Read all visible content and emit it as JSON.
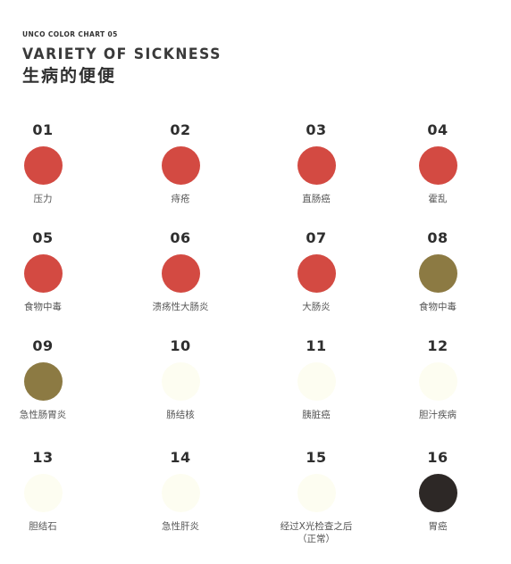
{
  "header": {
    "eyebrow": "UNCO COLOR CHART 05",
    "title": "VARIETY OF SICKNESS",
    "subtitle": "生病的便便"
  },
  "items": [
    {
      "num": "01",
      "label": "压力",
      "color": "#d34a42"
    },
    {
      "num": "02",
      "label": "痔疮",
      "color": "#d34a42"
    },
    {
      "num": "03",
      "label": "直肠癌",
      "color": "#d34a42"
    },
    {
      "num": "04",
      "label": "霍乱",
      "color": "#d34a42"
    },
    {
      "num": "05",
      "label": "食物中毒",
      "color": "#d34a42"
    },
    {
      "num": "06",
      "label": "溃疡性大肠炎",
      "color": "#d34a42"
    },
    {
      "num": "07",
      "label": "大肠炎",
      "color": "#d34a42"
    },
    {
      "num": "08",
      "label": "食物中毒",
      "color": "#8c7a43"
    },
    {
      "num": "09",
      "label": "急性肠胃炎",
      "color": "#8c7a43"
    },
    {
      "num": "10",
      "label": "肠结核",
      "color": "#fdfdf1"
    },
    {
      "num": "11",
      "label": "胰脏癌",
      "color": "#fdfdf1"
    },
    {
      "num": "12",
      "label": "胆汁疾病",
      "color": "#fdfdf1"
    },
    {
      "num": "13",
      "label": "胆结石",
      "color": "#fdfdf1"
    },
    {
      "num": "14",
      "label": "急性肝炎",
      "color": "#fdfdf1"
    },
    {
      "num": "15",
      "label": "经过X光检查之后",
      "label2": "（正常）",
      "color": "#fdfdf1"
    },
    {
      "num": "16",
      "label": "胃癌",
      "color": "#2d2826"
    }
  ]
}
